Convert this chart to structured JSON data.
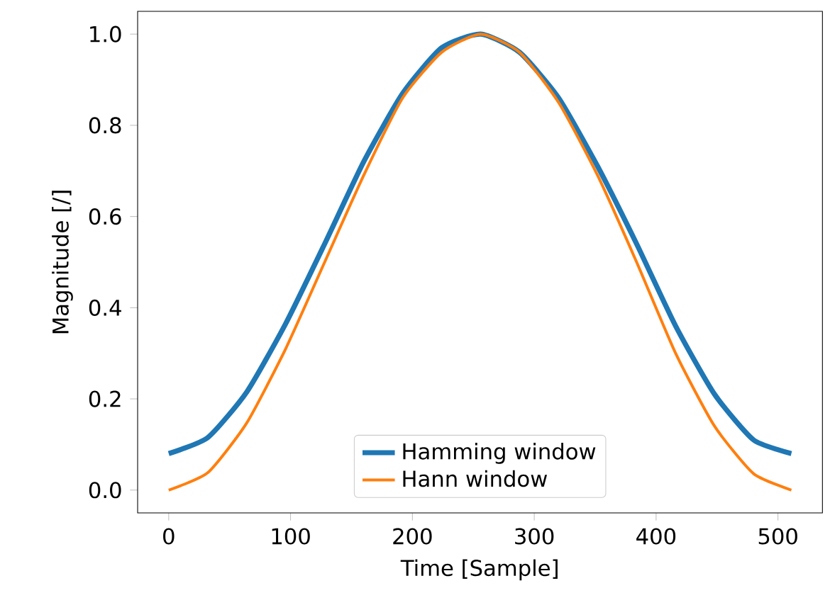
{
  "chart_data": {
    "type": "line",
    "xlabel": "Time [Sample]",
    "ylabel": "Magnitude [/]",
    "x": [
      0,
      32,
      64,
      96,
      128,
      160,
      192,
      224,
      256,
      288,
      320,
      352,
      384,
      416,
      448,
      480,
      511
    ],
    "series": [
      {
        "name": "Hamming window",
        "color": "#1f77b4",
        "values": [
          0.08,
          0.115,
          0.215,
          0.365,
          0.54,
          0.72,
          0.87,
          0.97,
          1.0,
          0.96,
          0.86,
          0.71,
          0.54,
          0.36,
          0.21,
          0.11,
          0.08
        ]
      },
      {
        "name": "Hann window",
        "color": "#ff7f0e",
        "values": [
          0.0,
          0.038,
          0.147,
          0.31,
          0.5,
          0.69,
          0.86,
          0.96,
          1.0,
          0.96,
          0.85,
          0.69,
          0.5,
          0.3,
          0.14,
          0.036,
          0.0
        ]
      }
    ],
    "xlim": [
      -25.5,
      536.5
    ],
    "ylim": [
      -0.05,
      1.05
    ],
    "xticks": [
      0,
      100,
      200,
      300,
      400,
      500
    ],
    "yticks": [
      {
        "value": 0,
        "label": "0.0"
      },
      {
        "value": 0.2,
        "label": "0.2"
      },
      {
        "value": 0.4,
        "label": "0.4"
      },
      {
        "value": 0.6,
        "label": "0.6"
      },
      {
        "value": 0.8,
        "label": "0.8"
      },
      {
        "value": 1.0,
        "label": "1.0"
      }
    ],
    "legend": "bottom",
    "grid": false,
    "marker": "none",
    "line_style": "solid"
  }
}
